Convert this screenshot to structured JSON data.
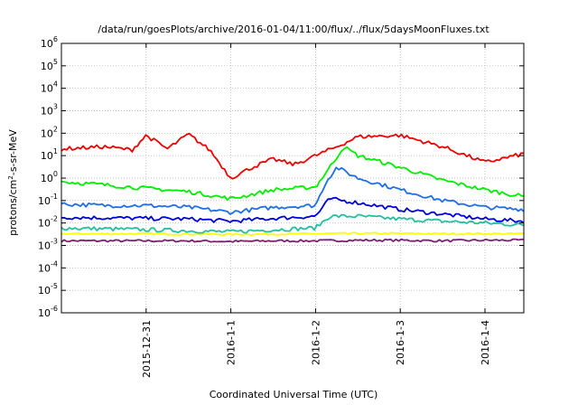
{
  "chart_data": {
    "type": "line",
    "title": "/data/run/goesPlots/archive/2016-01-04/11:00/flux/../flux/5daysMoonFluxes.txt",
    "xlabel": "Coordinated Universal Time (UTC)",
    "ylabel_base": "protons/cm",
    "ylabel_sup": "2",
    "ylabel_rest": "-s-sr-MeV",
    "yscale": "log",
    "ylim": [
      1e-06,
      1000000.0
    ],
    "xlim": [
      "2015-12-30 00:00",
      "2016-01-04 11:00"
    ],
    "grid": true,
    "legend": "none",
    "x_ticks": [
      "2015-12-31",
      "2016-1-1",
      "2016-1-2",
      "2016-1-3",
      "2016-1-4"
    ],
    "y_ticks": [
      {
        "base": "10",
        "exp": "-6"
      },
      {
        "base": "10",
        "exp": "-5"
      },
      {
        "base": "10",
        "exp": "-4"
      },
      {
        "base": "10",
        "exp": "-3"
      },
      {
        "base": "10",
        "exp": "-2"
      },
      {
        "base": "10",
        "exp": "-1"
      },
      {
        "base": "10",
        "exp": "0"
      },
      {
        "base": "10",
        "exp": "1"
      },
      {
        "base": "10",
        "exp": "2"
      },
      {
        "base": "10",
        "exp": "3"
      },
      {
        "base": "10",
        "exp": "4"
      },
      {
        "base": "10",
        "exp": "5"
      },
      {
        "base": "10",
        "exp": "6"
      }
    ],
    "series": [
      {
        "color": "#7b1f6f",
        "x": [
          "2015-12-30 00:00",
          "2015-12-30 12:00",
          "2015-12-31 00:00",
          "2015-12-31 12:00",
          "2016-01-01 00:00",
          "2016-01-01 12:00",
          "2016-01-02 00:00",
          "2016-01-02 12:00",
          "2016-01-03 00:00",
          "2016-01-03 12:00",
          "2016-01-04 00:00",
          "2016-01-04 11:00"
        ],
        "y": [
          0.0016,
          0.0016,
          0.0016,
          0.0016,
          0.0015,
          0.0016,
          0.0016,
          0.0017,
          0.0017,
          0.0016,
          0.0017,
          0.0017
        ]
      },
      {
        "color": "#ffff00",
        "x": [
          "2015-12-30 00:00",
          "2015-12-30 12:00",
          "2015-12-31 00:00",
          "2015-12-31 12:00",
          "2016-01-01 00:00",
          "2016-01-01 12:00",
          "2016-01-02 00:00",
          "2016-01-02 12:00",
          "2016-01-03 00:00",
          "2016-01-03 12:00",
          "2016-01-04 00:00",
          "2016-01-04 11:00"
        ],
        "y": [
          0.0033,
          0.0033,
          0.0033,
          0.0032,
          0.0031,
          0.0032,
          0.0033,
          0.0034,
          0.0034,
          0.0033,
          0.0033,
          0.0033
        ]
      },
      {
        "color": "#20c0a0",
        "x": [
          "2015-12-30 00:00",
          "2015-12-30 12:00",
          "2015-12-31 00:00",
          "2015-12-31 12:00",
          "2016-01-01 00:00",
          "2016-01-01 12:00",
          "2016-01-02 00:00",
          "2016-01-02 04:00",
          "2016-01-02 12:00",
          "2016-01-03 00:00",
          "2016-01-03 12:00",
          "2016-01-04 00:00",
          "2016-01-04 11:00"
        ],
        "y": [
          0.006,
          0.0055,
          0.005,
          0.0045,
          0.004,
          0.005,
          0.006,
          0.02,
          0.02,
          0.015,
          0.012,
          0.01,
          0.008
        ]
      },
      {
        "color": "#0000dd",
        "x": [
          "2015-12-30 00:00",
          "2015-12-30 12:00",
          "2015-12-31 00:00",
          "2015-12-31 12:00",
          "2016-01-01 00:00",
          "2016-01-01 12:00",
          "2016-01-02 00:00",
          "2016-01-02 04:00",
          "2016-01-02 12:00",
          "2016-01-03 00:00",
          "2016-01-03 12:00",
          "2016-01-04 00:00",
          "2016-01-04 11:00"
        ],
        "y": [
          0.018,
          0.017,
          0.016,
          0.015,
          0.012,
          0.016,
          0.02,
          0.12,
          0.08,
          0.04,
          0.025,
          0.015,
          0.012
        ]
      },
      {
        "color": "#1e6ee8",
        "x": [
          "2015-12-30 00:00",
          "2015-12-30 12:00",
          "2015-12-31 00:00",
          "2015-12-31 12:00",
          "2016-01-01 00:00",
          "2016-01-01 12:00",
          "2016-01-02 00:00",
          "2016-01-02 03:00",
          "2016-01-02 06:00",
          "2016-01-02 12:00",
          "2016-01-03 00:00",
          "2016-01-03 12:00",
          "2016-01-04 00:00",
          "2016-01-04 11:00"
        ],
        "y": [
          0.07,
          0.06,
          0.06,
          0.05,
          0.03,
          0.05,
          0.06,
          0.7,
          3,
          1.0,
          0.3,
          0.1,
          0.05,
          0.04
        ]
      },
      {
        "color": "#00ee00",
        "x": [
          "2015-12-30 00:00",
          "2015-12-30 12:00",
          "2015-12-31 00:00",
          "2015-12-31 12:00",
          "2016-01-01 00:00",
          "2016-01-01 12:00",
          "2016-01-02 00:00",
          "2016-01-02 04:00",
          "2016-01-02 08:00",
          "2016-01-02 12:00",
          "2016-01-03 00:00",
          "2016-01-03 12:00",
          "2016-01-04 00:00",
          "2016-01-04 11:00"
        ],
        "y": [
          0.7,
          0.5,
          0.35,
          0.25,
          0.12,
          0.3,
          0.4,
          3,
          25,
          10,
          3,
          0.8,
          0.3,
          0.15
        ]
      },
      {
        "color": "#ee0000",
        "x": [
          "2015-12-30 00:00",
          "2015-12-30 12:00",
          "2015-12-30 20:00",
          "2015-12-31 00:00",
          "2015-12-31 06:00",
          "2015-12-31 12:00",
          "2015-12-31 18:00",
          "2016-01-01 00:00",
          "2016-01-01 06:00",
          "2016-01-01 12:00",
          "2016-01-01 18:00",
          "2016-01-02 00:00",
          "2016-01-02 06:00",
          "2016-01-02 12:00",
          "2016-01-03 00:00",
          "2016-01-03 12:00",
          "2016-01-04 00:00",
          "2016-01-04 11:00"
        ],
        "y": [
          20,
          25,
          18,
          80,
          20,
          90,
          18,
          1,
          3,
          7,
          4,
          10,
          25,
          70,
          80,
          25,
          5,
          12
        ]
      }
    ]
  }
}
